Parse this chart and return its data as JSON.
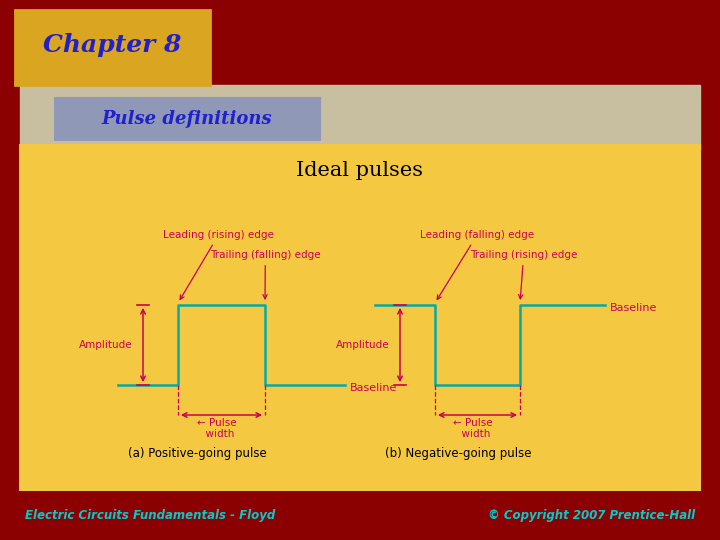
{
  "bg_dark_red": "#8B0000",
  "header_tan": "#C8BEA0",
  "content_bg": "#F5C842",
  "chapter_box_bg": "#DAA520",
  "chapter_box_border": "#2020AA",
  "chapter_text": "#2020CC",
  "chapter_text_str": "Chapter 8",
  "pulse_def_box_bg": "#9098B8",
  "pulse_def_box_border": "#404080",
  "pulse_def_text": "#2020CC",
  "pulse_def_text_str": "Pulse definitions",
  "content_border": "#888888",
  "title_text": "Ideal pulses",
  "title_color": "#000000",
  "label_color": "#CC0055",
  "pulse_color": "#00AAAA",
  "footer_color": "#00CCCC",
  "footer_left": "Electric Circuits Fundamentals - Floyd",
  "footer_right": "© Copyright 2007 Prentice-Hall",
  "pos_label": "(a) Positive-going pulse",
  "neg_label": "(b) Negative-going pulse"
}
